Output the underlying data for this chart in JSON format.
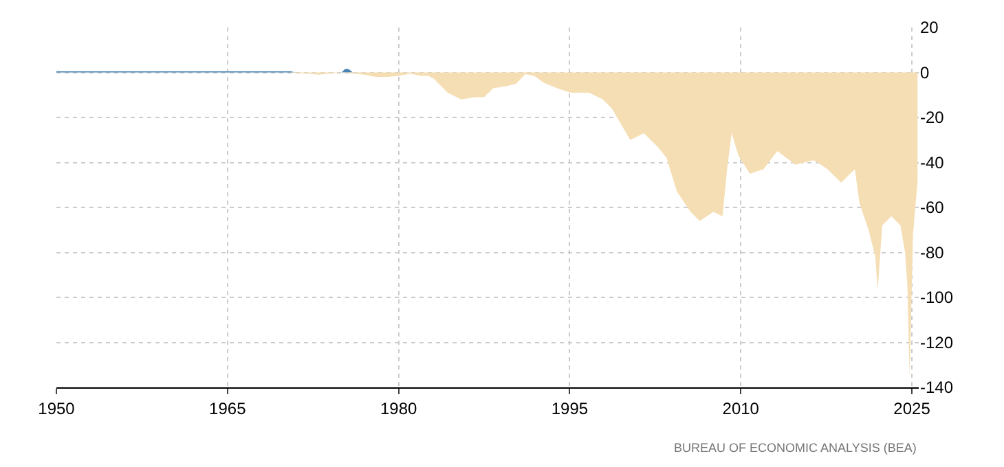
{
  "chart_data": {
    "type": "area",
    "annotations": [
      "BUREAU OF ECONOMIC ANALYSIS (BEA)"
    ],
    "series": [
      {
        "color": "#4682b4",
        "x": [
          1950,
          1970.5,
          1971,
          1975,
          1975.3,
          1975.6,
          1976,
          1981
        ],
        "values": [
          0.5,
          0.5,
          0,
          0,
          1.5,
          1.5,
          0,
          0
        ]
      },
      {
        "color": "#f5deb3",
        "x": [
          1970.5,
          1971,
          1972,
          1973,
          1974,
          1975,
          1977,
          1978,
          1979,
          1980,
          1981,
          1982,
          1982.6,
          1983.1,
          1984.3,
          1985.5,
          1986.7,
          1987.5,
          1988.3,
          1989.5,
          1990.3,
          1991.1,
          1991.9,
          1992.7,
          1993.9,
          1995.1,
          1996.7,
          1997.9,
          1998.7,
          1999.5,
          2000.3,
          2001.5,
          2002.7,
          2003.5,
          2004.4,
          2005.6,
          2006.4,
          2007.6,
          2008.4,
          2008.8,
          2009.2,
          2009.8,
          2010.8,
          2012,
          2013.2,
          2014.8,
          2016.4,
          2017.6,
          2018.8,
          2020,
          2020.4,
          2021.2,
          2021.8,
          2022,
          2022.4,
          2023.2,
          2024,
          2024.4,
          2024.6,
          2024.8,
          2025.1,
          2025.5
        ],
        "values": [
          0,
          -0.3,
          -0.5,
          -1,
          -0.5,
          0,
          -1,
          -2,
          -2,
          -1.5,
          -0.5,
          -1.5,
          -1.5,
          -2.8,
          -9,
          -12,
          -11,
          -11,
          -7,
          -6,
          -5,
          -0.8,
          -1.5,
          -4.5,
          -7,
          -9,
          -9,
          -12,
          -16,
          -23,
          -30,
          -27,
          -33,
          -38,
          -53,
          -62,
          -66,
          -62,
          -64,
          -43,
          -27,
          -37,
          -45,
          -43,
          -35,
          -41,
          -39,
          -43,
          -49,
          -43,
          -58,
          -70,
          -82,
          -97,
          -68,
          -64,
          -68,
          -80,
          -94,
          -135,
          -72,
          -48
        ]
      }
    ],
    "xlim": [
      1950,
      2025.6
    ],
    "xticks": [
      1950,
      1965,
      1980,
      1995,
      2010,
      2025
    ],
    "ylim": [
      -140,
      20
    ],
    "yticks": [
      -140,
      -120,
      -100,
      -80,
      -60,
      -40,
      -20,
      0,
      20
    ],
    "grid": true
  }
}
